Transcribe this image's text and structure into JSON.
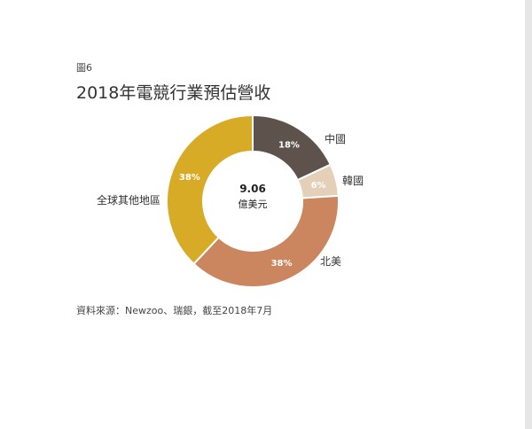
{
  "figure_label": "圖6",
  "source_note": "資料來源：Newzoo、瑞銀，截至2018年7月",
  "chart_data": {
    "type": "pie",
    "style": "donut",
    "title": "2018年電競行業預估營收",
    "center_value": "9.06",
    "center_unit": "億美元",
    "slices": [
      {
        "name": "中國",
        "value": 18,
        "label": "18%",
        "color": "#5e524c"
      },
      {
        "name": "韓國",
        "value": 6,
        "label": "6%",
        "color": "#e4cfb8"
      },
      {
        "name": "北美",
        "value": 38,
        "label": "38%",
        "color": "#cb8660"
      },
      {
        "name": "全球其他地區",
        "value": 38,
        "label": "38%",
        "color": "#d7ab26"
      }
    ]
  }
}
